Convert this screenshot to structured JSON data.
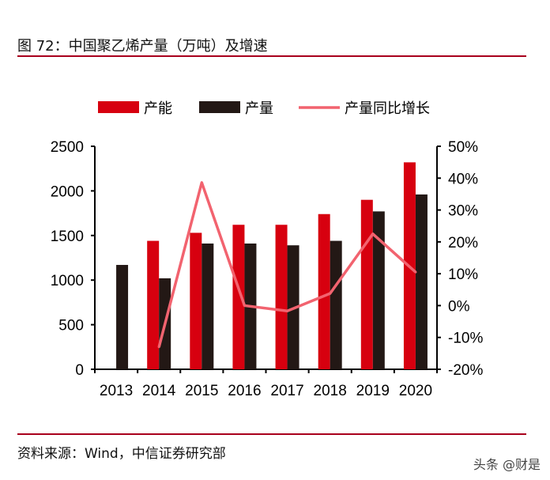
{
  "title": "图 72：中国聚乙烯产量（万吨）及增速",
  "source": "资料来源：Wind，中信证券研究部",
  "watermark": "头条 @财是",
  "colors": {
    "capacity": "#d7000f",
    "output": "#231815",
    "growth": "#f2636f",
    "rule": "#a8001c"
  },
  "chart_data": {
    "type": "bar",
    "categories": [
      "2013",
      "2014",
      "2015",
      "2016",
      "2017",
      "2018",
      "2019",
      "2020"
    ],
    "series": [
      {
        "name": "产能",
        "type": "bar",
        "axis": "left",
        "values": [
          null,
          1440,
          1530,
          1620,
          1620,
          1740,
          1900,
          2320
        ]
      },
      {
        "name": "产量",
        "type": "bar",
        "axis": "left",
        "values": [
          1170,
          1020,
          1410,
          1410,
          1390,
          1440,
          1770,
          1960
        ]
      },
      {
        "name": "产量同比增长",
        "type": "line",
        "axis": "right",
        "values": [
          null,
          -13,
          38.6,
          0,
          -1.7,
          3.8,
          22.5,
          10.5
        ]
      }
    ],
    "ylim": [
      0,
      2500
    ],
    "yticks": [
      "0",
      "500",
      "1000",
      "1500",
      "2000",
      "2500"
    ],
    "y2lim": [
      -20,
      50
    ],
    "y2ticks": [
      "-20%",
      "-10%",
      "0%",
      "10%",
      "20%",
      "30%",
      "40%",
      "50%"
    ],
    "legend": "top",
    "grid": false
  }
}
